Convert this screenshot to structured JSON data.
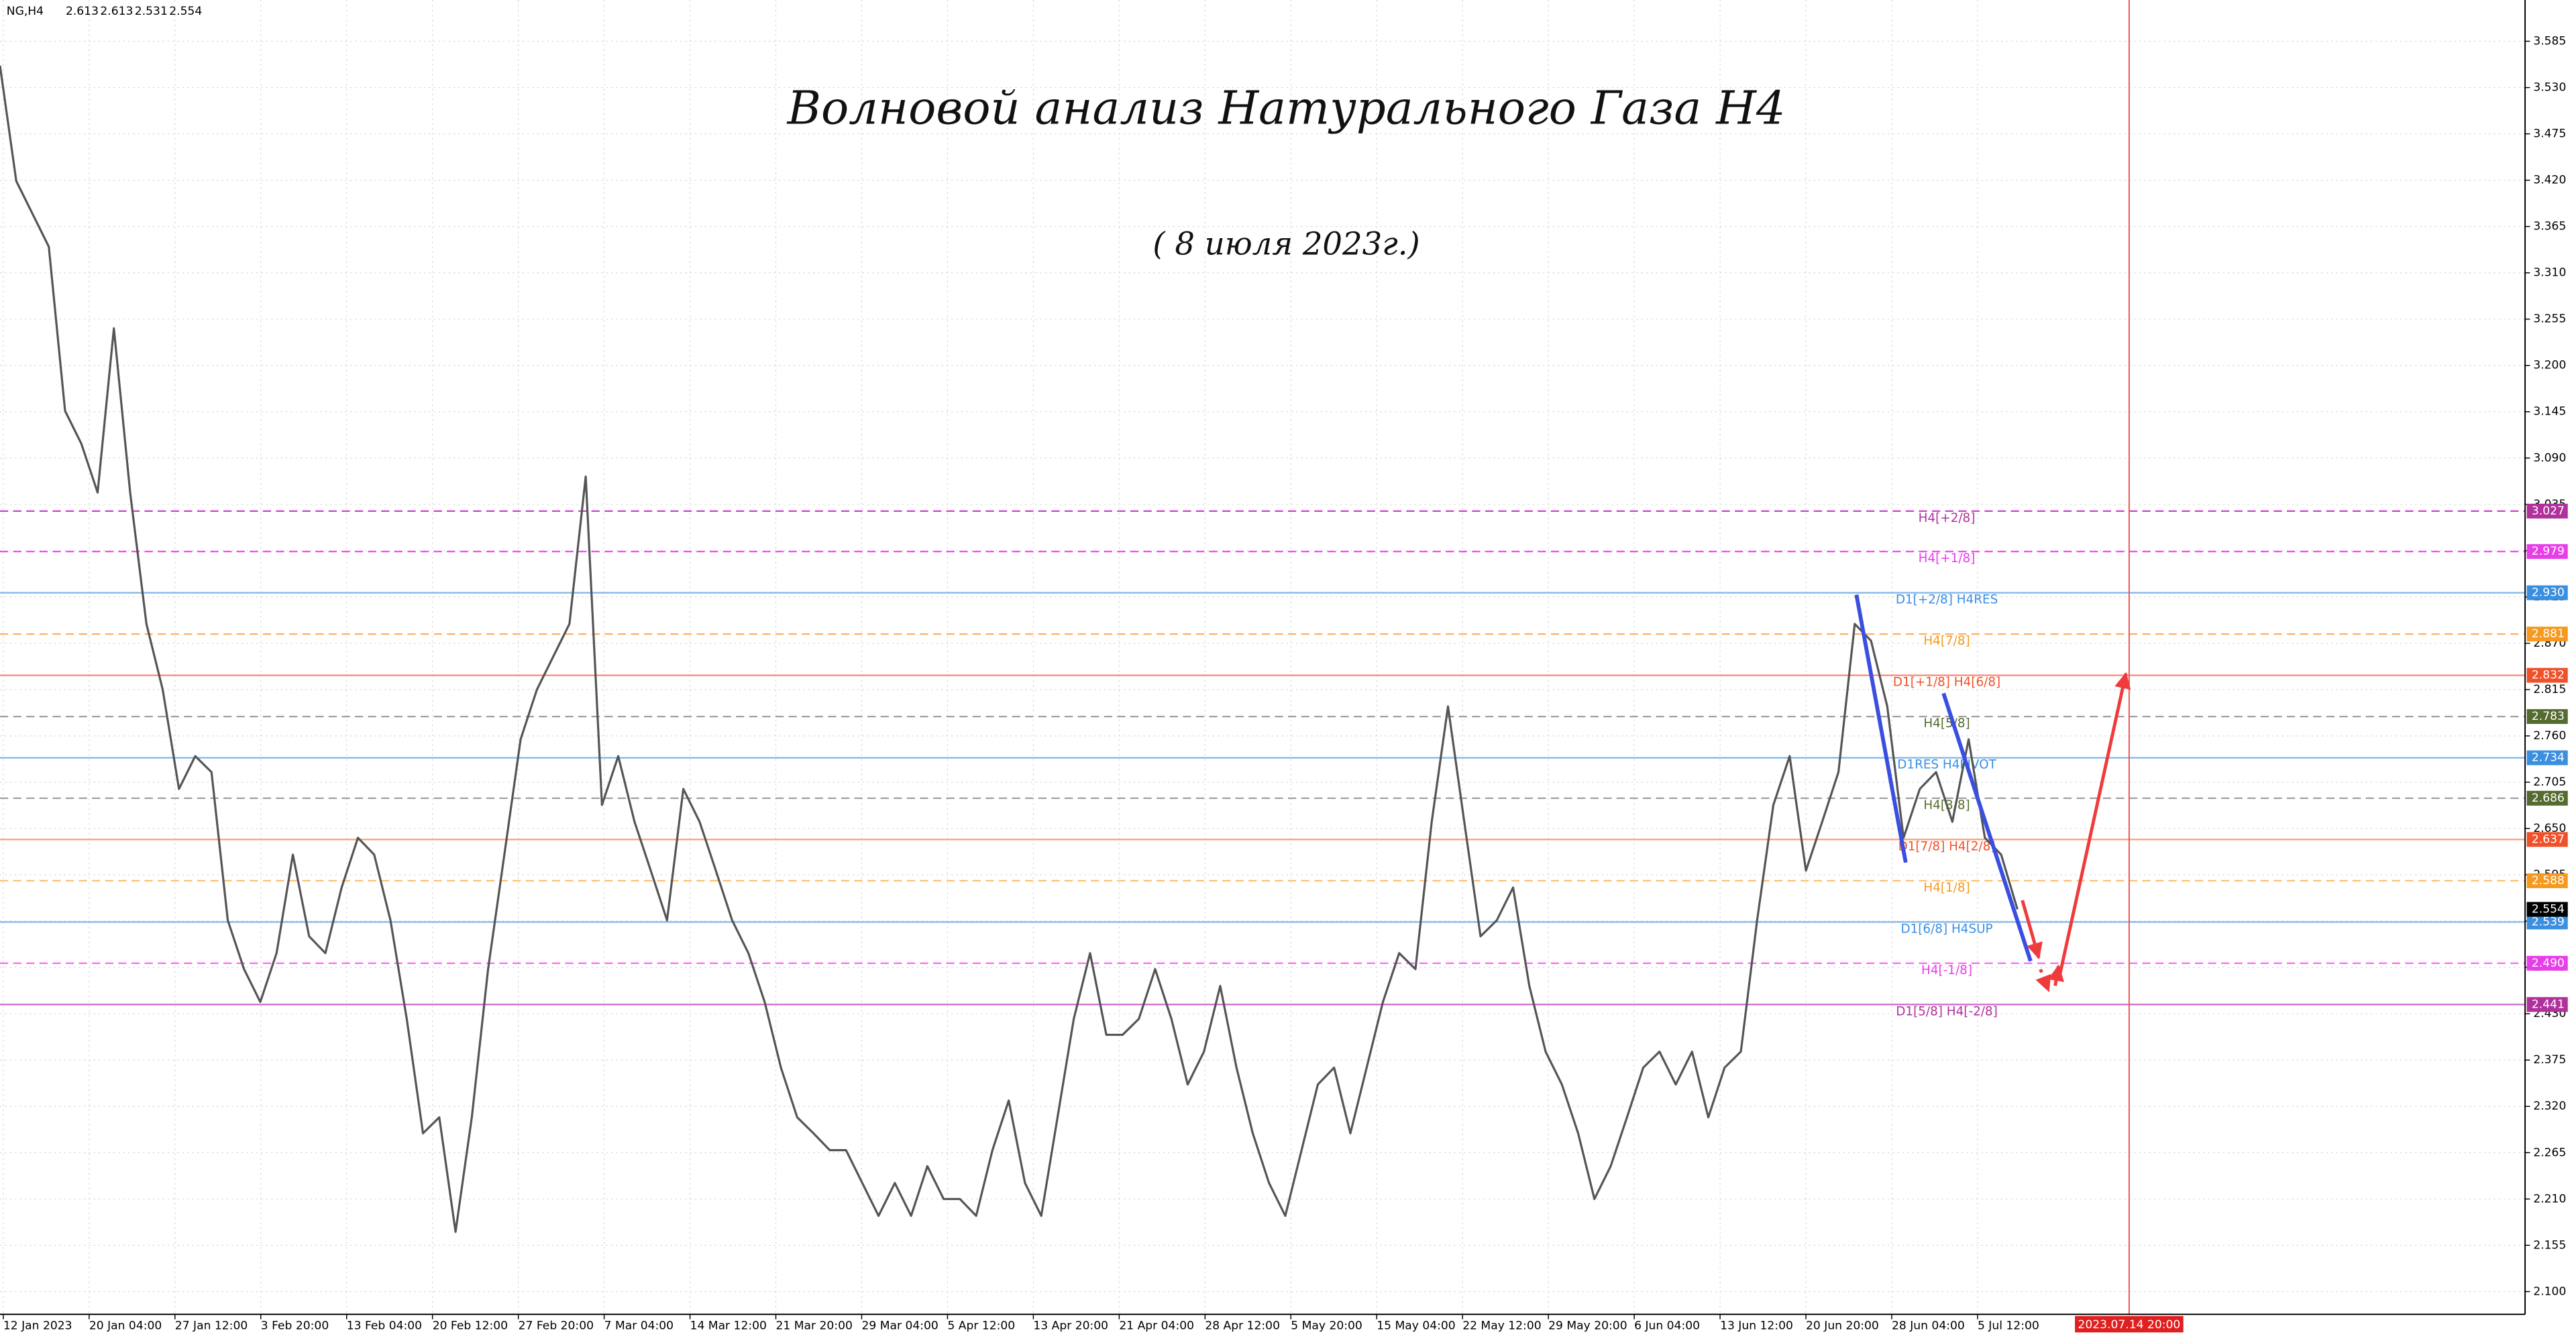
{
  "chart_data": {
    "type": "line",
    "header": {
      "symbol": "NG,H4",
      "ohlc": [
        2.613,
        2.613,
        2.531,
        2.554
      ]
    },
    "title": "Волновой анализ Натурального Газа H4",
    "subtitle": "( 8 июля 2023г.)",
    "x_labels": [
      "12 Jan 2023",
      "20 Jan 04:00",
      "27 Jan 12:00",
      "3 Feb 20:00",
      "13 Feb 04:00",
      "20 Feb 12:00",
      "27 Feb 20:00",
      "7 Mar 04:00",
      "14 Mar 12:00",
      "21 Mar 20:00",
      "29 Mar 04:00",
      "5 Apr 12:00",
      "13 Apr 20:00",
      "21 Apr 04:00",
      "28 Apr 12:00",
      "5 May 20:00",
      "15 May 04:00",
      "22 May 12:00",
      "29 May 20:00",
      "6 Jun 04:00",
      "13 Jun 12:00",
      "20 Jun 20:00",
      "28 Jun 04:00",
      "5 Jul 12:00"
    ],
    "marker_label": "2023.07.14 20:00",
    "series": [
      {
        "color": "#555555",
        "values": [
          3.556,
          3.419,
          3.38,
          3.341,
          3.146,
          3.107,
          3.049,
          3.244,
          3.049,
          2.893,
          2.815,
          2.697,
          2.736,
          2.717,
          2.541,
          2.483,
          2.444,
          2.502,
          2.619,
          2.522,
          2.502,
          2.58,
          2.639,
          2.619,
          2.541,
          2.424,
          2.288,
          2.307,
          2.171,
          2.307,
          2.483,
          2.619,
          2.756,
          2.815,
          2.854,
          2.893,
          3.068,
          2.678,
          2.736,
          2.658,
          2.6,
          2.541,
          2.697,
          2.658,
          2.6,
          2.541,
          2.502,
          2.444,
          2.366,
          2.307,
          2.288,
          2.268,
          2.268,
          2.229,
          2.19,
          2.229,
          2.19,
          2.249,
          2.21,
          2.21,
          2.19,
          2.268,
          2.327,
          2.229,
          2.19,
          2.307,
          2.424,
          2.502,
          2.405,
          2.405,
          2.424,
          2.483,
          2.424,
          2.346,
          2.385,
          2.463,
          2.366,
          2.288,
          2.229,
          2.19,
          2.268,
          2.346,
          2.366,
          2.288,
          2.366,
          2.444,
          2.502,
          2.483,
          2.658,
          2.795,
          2.658,
          2.522,
          2.541,
          2.58,
          2.463,
          2.385,
          2.346,
          2.288,
          2.21,
          2.249,
          2.307,
          2.366,
          2.385,
          2.346,
          2.385,
          2.307,
          2.366,
          2.385,
          2.541,
          2.678,
          2.736,
          2.6,
          2.658,
          2.717,
          2.893,
          2.873,
          2.795,
          2.639,
          2.697,
          2.717,
          2.658,
          2.756,
          2.639,
          2.619,
          2.554
        ]
      }
    ],
    "ylim": [
      2.073,
      3.634
    ],
    "yticks": [
      3.585,
      {
        "value": 3.53,
        "label": "3.530"
      },
      3.475,
      {
        "value": 3.42,
        "label": "3.420"
      },
      3.365,
      {
        "value": 3.31,
        "label": "3.310"
      },
      3.255,
      {
        "value": 3.2,
        "label": "3.200"
      },
      3.145,
      {
        "value": 3.09,
        "label": "3.090"
      },
      3.035,
      {
        "value": 2.98,
        "label": "2.980"
      },
      2.925,
      {
        "value": 2.87,
        "label": "2.870"
      },
      2.815,
      {
        "value": 2.76,
        "label": "2.760"
      },
      2.705,
      {
        "value": 2.65,
        "label": "2.650"
      },
      2.595,
      {
        "value": 2.54,
        "label": "2.540"
      },
      2.485,
      {
        "value": 2.43,
        "label": "2.430"
      },
      2.375,
      {
        "value": 2.32,
        "label": "2.320"
      },
      2.265,
      {
        "value": 2.21,
        "label": "2.210"
      },
      2.155,
      {
        "value": 2.1,
        "label": "2.100"
      }
    ],
    "grid": true,
    "current_price": 2.554,
    "levels": [
      {
        "value": 3.027,
        "label": "H4[+2/8]",
        "color": "#cc44cc",
        "box_color": "#b0309c",
        "dashed": true
      },
      {
        "value": 2.979,
        "label": "H4[+1/8]",
        "color": "#ff44ff",
        "box_color": "#e83ee8",
        "dashed": true
      },
      {
        "value": 2.93,
        "value_label": "2.930",
        "label": "D1[+2/8] H4RES",
        "color": "#7fb6ea",
        "box_color": "#3b8fe0",
        "dashed": false
      },
      {
        "value": 2.881,
        "label": "H4[7/8]",
        "color": "#ffb060",
        "box_color": "#f59a1e",
        "dashed": true
      },
      {
        "value": 2.832,
        "label": "D1[+1/8] H4[6/8]",
        "color": "#ff8a70",
        "box_color": "#f0502a",
        "dashed": false
      },
      {
        "value": 2.783,
        "label": "H4[5/8]",
        "color": "#a0a0a0",
        "box_color": "#556b2f",
        "dashed": true
      },
      {
        "value": 2.734,
        "label": "D1RES H4PIVOT",
        "color": "#7fb6ea",
        "box_color": "#3b8fe0",
        "dashed": false
      },
      {
        "value": 2.686,
        "label": "H4[3/8]",
        "color": "#a0a0a0",
        "box_color": "#556b2f",
        "dashed": true
      },
      {
        "value": 2.637,
        "label": "D1[7/8] H4[2/8]",
        "color": "#ff9a70",
        "box_color": "#f0502a",
        "dashed": false
      },
      {
        "value": 2.588,
        "label": "H4[1/8]",
        "color": "#ffc070",
        "box_color": "#f59a1e",
        "dashed": true
      },
      {
        "value": 2.539,
        "label": "D1[6/8] H4SUP",
        "color": "#7fb6ea",
        "box_color": "#3b8fe0",
        "dashed": false
      },
      {
        "value": 2.49,
        "value_label": "2.490",
        "label": "H4[-1/8]",
        "color": "#ff66ff",
        "box_color": "#e83ee8",
        "dashed": true
      },
      {
        "value": 2.441,
        "label": "D1[5/8] H4[-2/8]",
        "color": "#cc66cc",
        "box_color": "#b0309c",
        "dashed": false
      }
    ]
  }
}
